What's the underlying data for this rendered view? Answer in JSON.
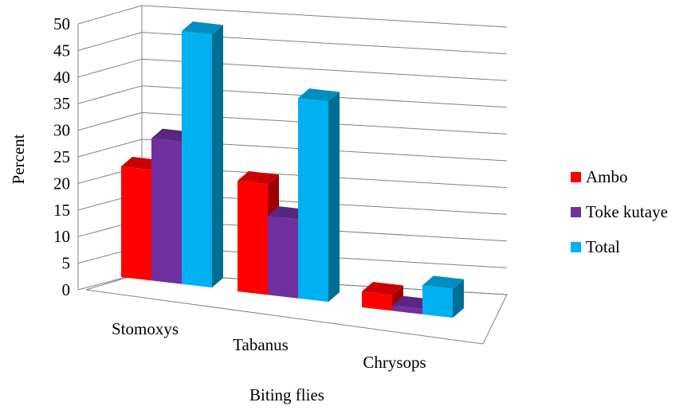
{
  "chart_data": {
    "type": "bar",
    "categories": [
      "Stomoxys",
      "Tabanus",
      "Chrysops"
    ],
    "series": [
      {
        "name": "Ambo",
        "values": [
          21,
          21,
          3
        ],
        "color": "#ff0000"
      },
      {
        "name": "Toke kutaye",
        "values": [
          27,
          15,
          1
        ],
        "color": "#7030a0"
      },
      {
        "name": "Total",
        "values": [
          48,
          38,
          5.5
        ],
        "color": "#00b0f0"
      }
    ],
    "xlabel": "Biting flies",
    "ylabel": "Percent",
    "ylim": [
      0,
      50
    ],
    "yticks": [
      0,
      5,
      10,
      15,
      20,
      25,
      30,
      35,
      40,
      45,
      50
    ],
    "grid": true,
    "legend_position": "right",
    "style": "3d-clustered-column"
  }
}
